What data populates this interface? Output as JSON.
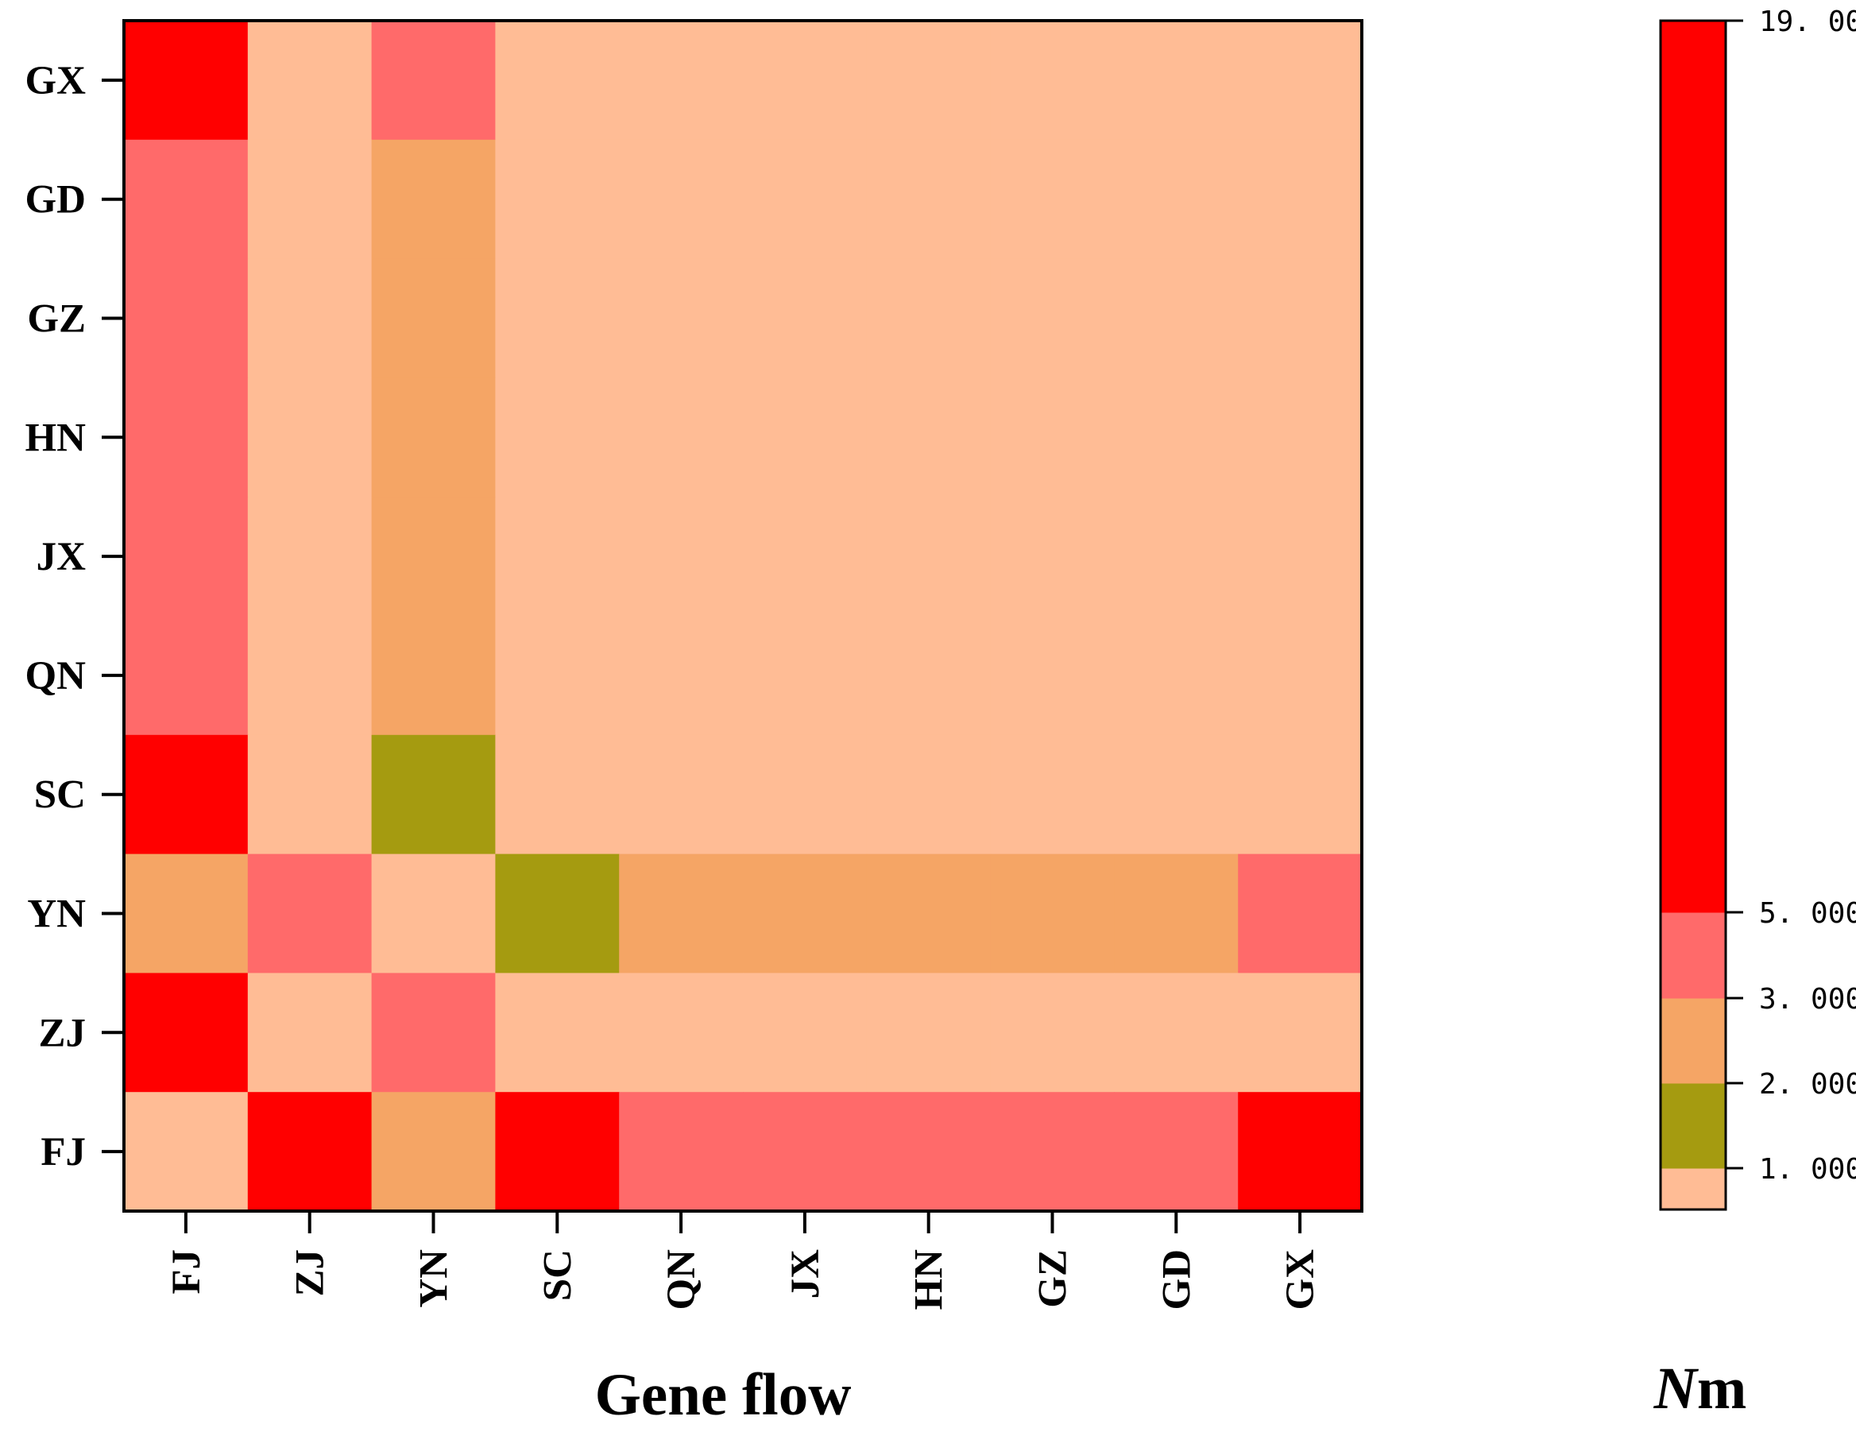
{
  "chart_data": {
    "type": "heatmap",
    "x_categories": [
      "FJ",
      "ZJ",
      "YN",
      "SC",
      "QN",
      "JX",
      "HN",
      "GZ",
      "GD",
      "GX"
    ],
    "y_categories": [
      "GX",
      "GD",
      "GZ",
      "HN",
      "JX",
      "QN",
      "SC",
      "YN",
      "ZJ",
      "FJ"
    ],
    "xlabel": "Gene flow",
    "colorbar_title_italic": "N",
    "colorbar_title_rest": "m",
    "bins": [
      {
        "min": 0,
        "max": 1,
        "color": "#FFBC95"
      },
      {
        "min": 1,
        "max": 2,
        "color": "#A59B10"
      },
      {
        "min": 2,
        "max": 3,
        "color": "#F5A565"
      },
      {
        "min": 3,
        "max": 5,
        "color": "#FF6A6A"
      },
      {
        "min": 5,
        "max": 19,
        "color": "#FF0000"
      }
    ],
    "colorbar_ticks": [
      {
        "value": 1,
        "label": "1. 000"
      },
      {
        "value": 2,
        "label": "2. 000"
      },
      {
        "value": 3,
        "label": "3. 000"
      },
      {
        "value": 5,
        "label": "5. 000"
      },
      {
        "value": 19,
        "label": "19. 00"
      }
    ],
    "values": [
      [
        6,
        0.5,
        4,
        0.5,
        0.5,
        0.5,
        0.5,
        0.5,
        0.5,
        0.5
      ],
      [
        4,
        0.5,
        2.5,
        0.5,
        0.5,
        0.5,
        0.5,
        0.5,
        0.5,
        0.5
      ],
      [
        4,
        0.5,
        2.5,
        0.5,
        0.5,
        0.5,
        0.5,
        0.5,
        0.5,
        0.5
      ],
      [
        4,
        0.5,
        2.5,
        0.5,
        0.5,
        0.5,
        0.5,
        0.5,
        0.5,
        0.5
      ],
      [
        4,
        0.5,
        2.5,
        0.5,
        0.5,
        0.5,
        0.5,
        0.5,
        0.5,
        0.5
      ],
      [
        4,
        0.5,
        2.5,
        0.5,
        0.5,
        0.5,
        0.5,
        0.5,
        0.5,
        0.5
      ],
      [
        6,
        0.5,
        1.5,
        0.5,
        0.5,
        0.5,
        0.5,
        0.5,
        0.5,
        0.5
      ],
      [
        2.5,
        4,
        0.5,
        1.5,
        2.5,
        2.5,
        2.5,
        2.5,
        2.5,
        4
      ],
      [
        6,
        0.5,
        4,
        0.5,
        0.5,
        0.5,
        0.5,
        0.5,
        0.5,
        0.5
      ],
      [
        0.5,
        6,
        2.5,
        6,
        4,
        4,
        4,
        4,
        4,
        6
      ]
    ]
  }
}
